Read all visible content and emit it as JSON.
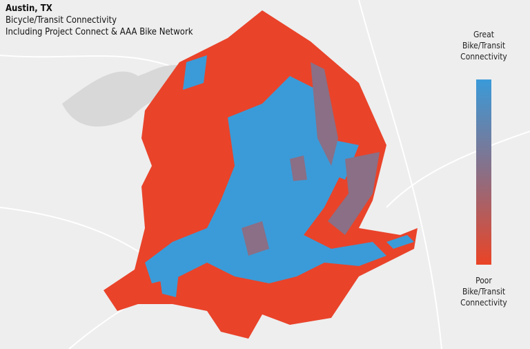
{
  "header": {
    "lines": [
      "Austin, TX",
      "Bicycle/Transit Connectivity",
      "Including Project Connect & AAA Bike Network"
    ]
  },
  "legend": {
    "top": [
      "Great",
      "Bike/Transit",
      "Connectivity"
    ],
    "bottom": [
      "Poor",
      "Bike/Transit",
      "Connectivity"
    ]
  }
}
